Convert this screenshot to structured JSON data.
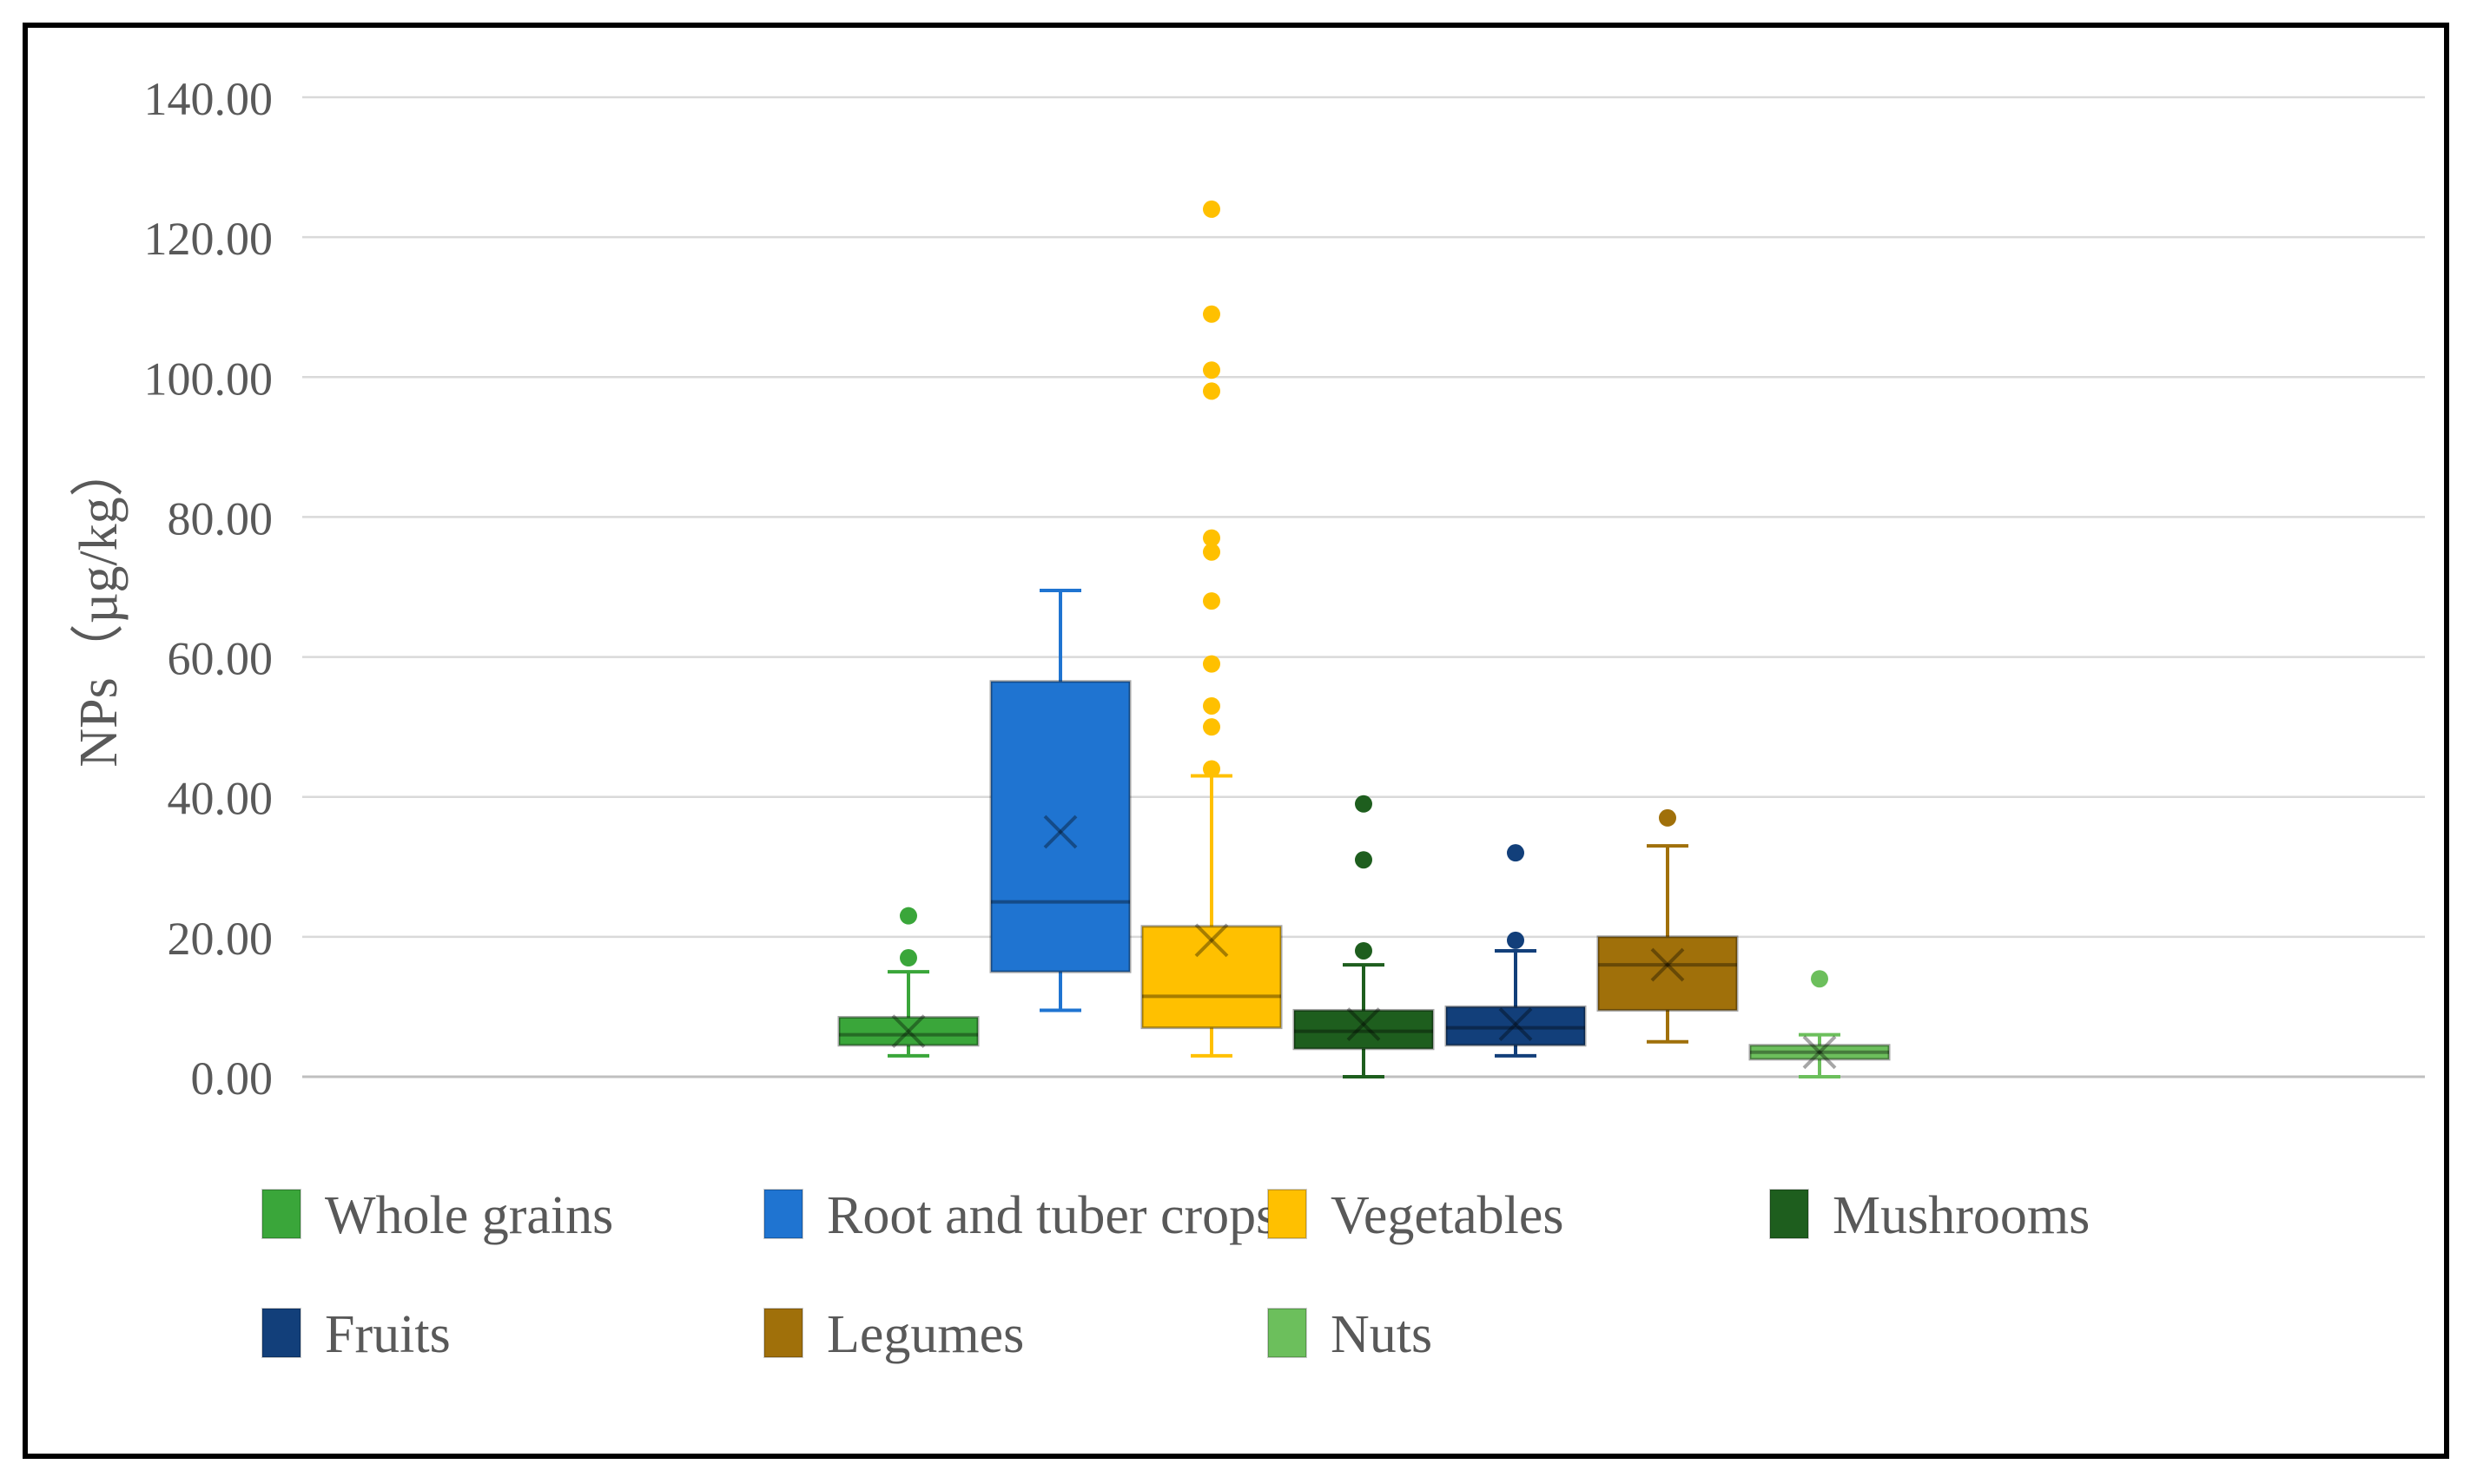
{
  "chart_data": {
    "type": "boxplot",
    "title": "",
    "xlabel": "",
    "ylabel": "NPs（µg/kg）",
    "ylim": [
      0,
      140
    ],
    "yticks": [
      "0.00",
      "20.00",
      "40.00",
      "60.00",
      "80.00",
      "100.00",
      "120.00",
      "140.00"
    ],
    "grid": true,
    "legend_position": "bottom",
    "series": [
      {
        "name": "Whole grains",
        "color": "#3aa63a",
        "whisker_low": 3,
        "q1": 4.5,
        "median": 6,
        "q3": 8.5,
        "whisker_high": 15,
        "mean": 6.5,
        "outliers": [
          17,
          23
        ]
      },
      {
        "name": "Root and tuber crops",
        "color": "#1f74d1",
        "whisker_low": 9.5,
        "q1": 15,
        "median": 25,
        "q3": 56.5,
        "whisker_high": 69.5,
        "mean": 35,
        "outliers": []
      },
      {
        "name": "Vegetables",
        "color": "#ffc000",
        "whisker_low": 3,
        "q1": 7,
        "median": 11.5,
        "q3": 21.5,
        "whisker_high": 43,
        "mean": 19.5,
        "outliers": [
          44,
          50,
          53,
          59,
          68,
          75,
          77,
          98,
          101,
          109,
          124
        ]
      },
      {
        "name": "Mushrooms",
        "color": "#1e5e1e",
        "whisker_low": 0,
        "q1": 4,
        "median": 6.5,
        "q3": 9.5,
        "whisker_high": 16,
        "mean": 7.5,
        "outliers": [
          18,
          31,
          39
        ]
      },
      {
        "name": "Fruits",
        "color": "#123f7a",
        "whisker_low": 3,
        "q1": 4.5,
        "median": 7,
        "q3": 10,
        "whisker_high": 18,
        "mean": 7.5,
        "outliers": [
          19.5,
          32
        ]
      },
      {
        "name": "Legumes",
        "color": "#a0700a",
        "whisker_low": 5,
        "q1": 9.5,
        "median": 16,
        "q3": 20,
        "whisker_high": 33,
        "mean": 16,
        "outliers": [
          37
        ]
      },
      {
        "name": "Nuts",
        "color": "#6cbf5c",
        "whisker_low": 0,
        "q1": 2.5,
        "median": 3.5,
        "q3": 4.5,
        "whisker_high": 6,
        "mean": 3.5,
        "outliers": [
          14
        ]
      }
    ]
  }
}
